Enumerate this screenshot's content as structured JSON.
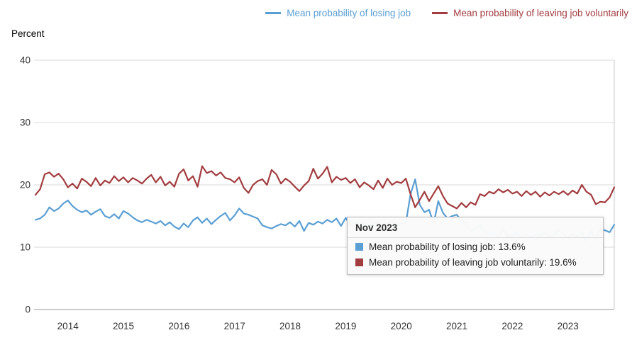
{
  "legend": {
    "items": [
      {
        "label": "Mean probability of losing job",
        "color": "#5a9fd4"
      },
      {
        "label": "Mean probability of leaving job voluntarily",
        "color": "#a23c3f"
      }
    ]
  },
  "tooltip": {
    "title": "Nov 2023",
    "rows": [
      {
        "text": "Mean probability of losing job: 13.6%",
        "color": "#5a9fd4"
      },
      {
        "text": "Mean probability of leaving job voluntarily: 19.6%",
        "color": "#a23c3f"
      }
    ]
  },
  "chart_data": {
    "type": "line",
    "title": "",
    "ylabel": "Percent",
    "xlabel": "",
    "ylim": [
      0,
      40
    ],
    "yticks": [
      0,
      10,
      20,
      30,
      40
    ],
    "xticks": [
      2014,
      2015,
      2016,
      2017,
      2018,
      2019,
      2020,
      2021,
      2022,
      2023
    ],
    "grid": true,
    "legend_position": "top",
    "x_start": {
      "year": 2013,
      "month": 6
    },
    "x_end": {
      "year": 2023,
      "month": 11
    },
    "x_step": "monthly",
    "series": [
      {
        "name": "Mean probability of losing job",
        "color": "#5a9fd4",
        "values": [
          14.4,
          14.6,
          15.2,
          16.4,
          15.8,
          16.2,
          17.0,
          17.5,
          16.6,
          16.0,
          15.6,
          15.9,
          15.2,
          15.7,
          16.1,
          15.0,
          14.7,
          15.3,
          14.6,
          15.8,
          15.4,
          14.8,
          14.3,
          14.0,
          14.4,
          14.1,
          13.8,
          14.2,
          13.5,
          14.0,
          13.3,
          12.9,
          13.8,
          13.2,
          14.3,
          14.8,
          13.9,
          14.6,
          13.7,
          14.4,
          15.0,
          15.5,
          14.3,
          15.1,
          16.2,
          15.4,
          15.2,
          14.9,
          14.6,
          13.5,
          13.2,
          13.0,
          13.4,
          13.7,
          13.5,
          14.0,
          13.3,
          14.2,
          12.6,
          13.9,
          13.6,
          14.1,
          13.8,
          14.4,
          14.0,
          14.6,
          13.4,
          14.7,
          13.5,
          14.0,
          13.6,
          13.9,
          13.3,
          13.7,
          14.0,
          13.5,
          13.8,
          14.2,
          13.4,
          13.8,
          13.9,
          18.5,
          20.9,
          16.8,
          15.6,
          16.0,
          13.8,
          17.4,
          15.5,
          14.6,
          15.0,
          15.2,
          14.2,
          13.8,
          12.6,
          13.0,
          13.6,
          12.4,
          12.0,
          12.3,
          11.6,
          12.9,
          11.7,
          11.9,
          12.3,
          11.5,
          12.1,
          11.6,
          12.0,
          11.8,
          12.4,
          11.7,
          12.0,
          12.7,
          12.1,
          11.5,
          12.1,
          11.7,
          12.3,
          11.0,
          12.6,
          11.3,
          12.9,
          12.7,
          12.4,
          13.6
        ]
      },
      {
        "name": "Mean probability of leaving job voluntarily",
        "color": "#a23c3f",
        "values": [
          18.4,
          19.3,
          21.7,
          22.0,
          21.3,
          21.8,
          20.9,
          19.6,
          20.2,
          19.4,
          21.0,
          20.5,
          19.8,
          21.1,
          19.9,
          20.7,
          20.3,
          21.4,
          20.6,
          21.2,
          20.4,
          21.1,
          20.7,
          20.2,
          21.0,
          21.6,
          20.4,
          21.3,
          19.9,
          20.5,
          19.7,
          21.8,
          22.5,
          20.7,
          21.4,
          19.7,
          23.0,
          21.9,
          22.2,
          21.5,
          22.0,
          21.1,
          20.9,
          20.4,
          21.2,
          19.5,
          18.7,
          20.0,
          20.6,
          20.9,
          20.0,
          22.4,
          21.7,
          20.2,
          21.0,
          20.5,
          19.7,
          19.0,
          19.9,
          20.6,
          22.6,
          21.0,
          21.8,
          22.9,
          20.4,
          21.3,
          20.8,
          21.1,
          20.3,
          20.9,
          19.6,
          20.4,
          19.9,
          19.3,
          20.7,
          19.5,
          21.0,
          20.0,
          20.5,
          20.3,
          21.0,
          18.5,
          16.4,
          17.6,
          18.9,
          17.4,
          18.6,
          19.8,
          18.2,
          17.0,
          16.6,
          16.2,
          17.1,
          16.4,
          17.2,
          16.8,
          18.5,
          18.2,
          18.9,
          18.6,
          19.3,
          18.8,
          19.2,
          18.6,
          18.9,
          18.2,
          19.0,
          18.4,
          18.9,
          18.1,
          18.8,
          18.3,
          18.9,
          18.5,
          19.0,
          18.4,
          19.1,
          18.6,
          20.0,
          18.9,
          18.4,
          16.9,
          17.3,
          17.2,
          18.0,
          19.6
        ]
      }
    ]
  }
}
